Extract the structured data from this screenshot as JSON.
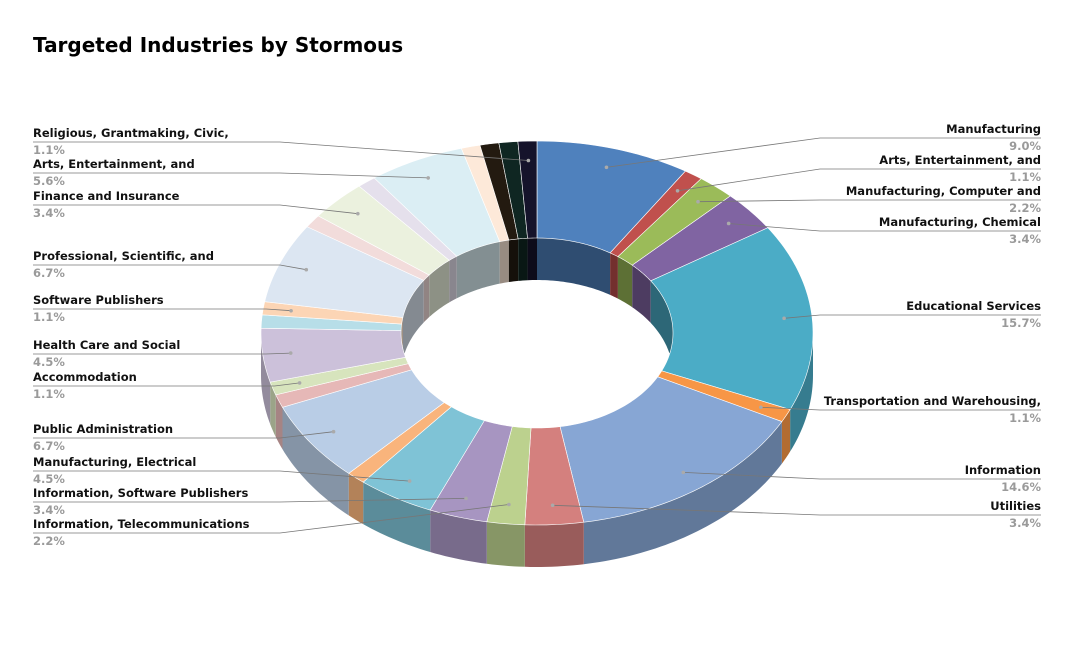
{
  "chart_data": {
    "type": "donut3d",
    "title": "Targeted Industries by Stormous",
    "categories": [
      "Manufacturing",
      "Arts, Entertainment, and",
      "Manufacturing, Computer and",
      "Manufacturing, Chemical",
      "Educational Services",
      "Transportation and Warehousing,",
      "Information",
      "Utilities",
      "Information, Telecommunications",
      "Information, Software Publishers",
      "Manufacturing, Electrical",
      null,
      "Public Administration",
      null,
      "Accommodation",
      "Health Care and Social",
      null,
      "Software Publishers",
      "Professional, Scientific, and",
      null,
      "Finance and Insurance",
      null,
      "Arts, Entertainment, and",
      null,
      null,
      null,
      "Religious, Grantmaking, Civic,"
    ],
    "values": [
      9.0,
      1.1,
      2.2,
      3.4,
      15.7,
      1.1,
      14.6,
      3.4,
      2.2,
      3.4,
      4.5,
      1.1,
      6.7,
      1.1,
      1.1,
      4.5,
      1.1,
      1.1,
      6.7,
      1.1,
      3.4,
      1.1,
      5.6,
      1.1,
      1.1,
      1.1,
      1.1
    ],
    "value_labels": [
      "9.0%",
      "1.1%",
      "2.2%",
      "3.4%",
      "15.7%",
      "1.1%",
      "14.6%",
      "3.4%",
      "2.2%",
      "3.4%",
      "4.5%",
      null,
      "6.7%",
      null,
      "1.1%",
      "4.5%",
      null,
      "1.1%",
      "6.7%",
      null,
      "3.4%",
      null,
      "5.6%",
      null,
      null,
      null,
      "1.1%"
    ],
    "colors": [
      "#4f81bd",
      "#c0504d",
      "#9bbb59",
      "#8064a2",
      "#4bacc6",
      "#f79646",
      "#87a6d4",
      "#d4807e",
      "#bcd18e",
      "#a795c1",
      "#7fc3d6",
      "#f9b47c",
      "#b9cde6",
      "#e6b8b7",
      "#d7e4bd",
      "#ccc1da",
      "#b7dee8",
      "#fcd5b5",
      "#dce6f2",
      "#f2dcdb",
      "#ebf1de",
      "#e5e0ec",
      "#dbeef4",
      "#fde9d9",
      "#231a10",
      "#0f2622",
      "#15132b"
    ]
  }
}
